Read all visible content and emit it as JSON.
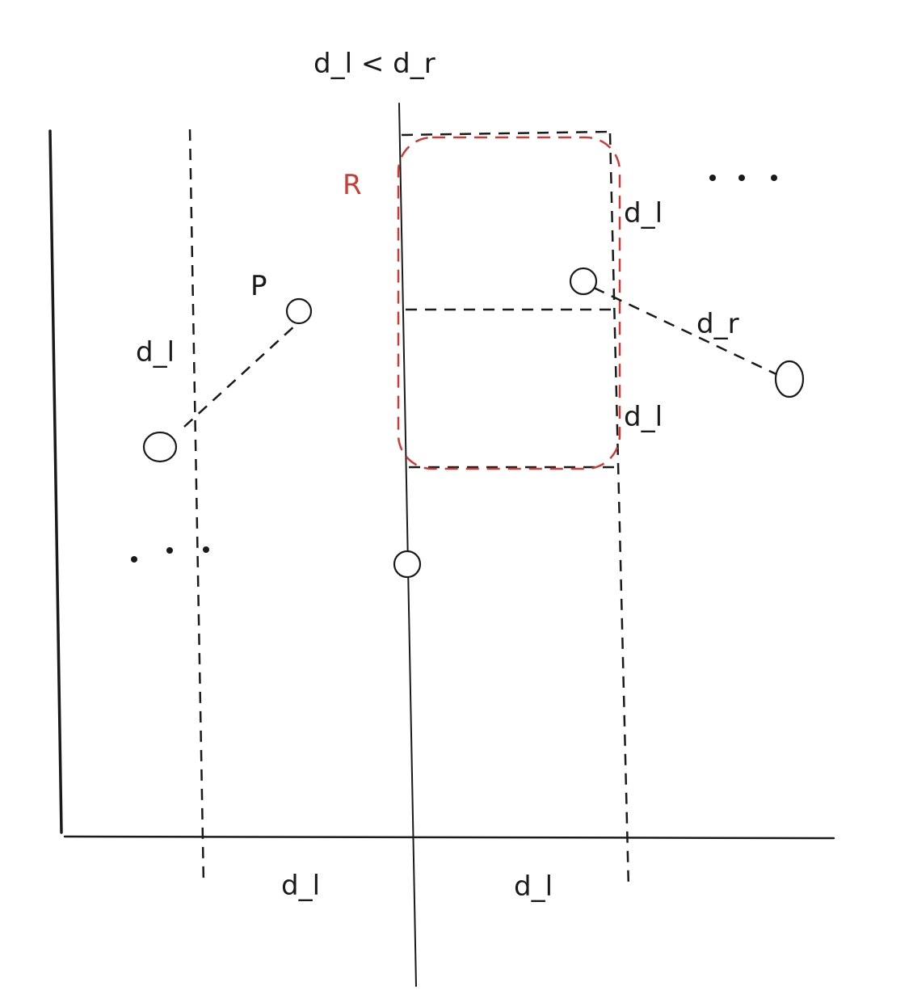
{
  "diagram": {
    "title": "d_l < d_r",
    "region_label": "R",
    "point_label": "P",
    "left_pair_distance": "d_l",
    "right_pair_distance": "d_r",
    "strip_height_upper": "d_l",
    "strip_height_lower": "d_l",
    "bottom_left_width": "d_l",
    "bottom_right_width": "d_l",
    "ellipsis_left": "• • •",
    "ellipsis_right": "• • •"
  },
  "colors": {
    "ink": "#1a1a1a",
    "region": "#cc3b34"
  }
}
